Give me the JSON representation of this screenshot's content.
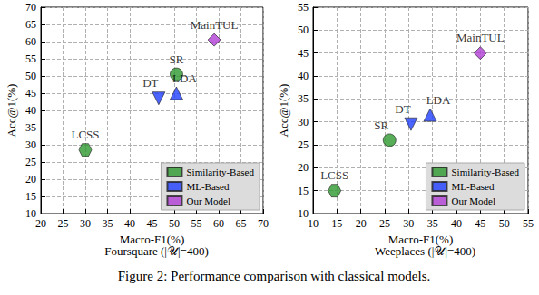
{
  "caption": "Figure 2: Performance comparison with classical models.",
  "chart_data": [
    {
      "type": "scatter",
      "title": "Foursquare (|𝒰|=400)",
      "x_label": "Macro-F1(%)",
      "y_label": "Acc@1(%)",
      "xlim": [
        20,
        70
      ],
      "xticks": [
        20,
        25,
        30,
        35,
        40,
        45,
        50,
        55,
        60,
        65,
        70
      ],
      "ylim": [
        10,
        70
      ],
      "yticks": [
        10,
        15,
        20,
        25,
        30,
        35,
        40,
        45,
        50,
        55,
        60,
        65,
        70
      ],
      "grid": true,
      "legend": "lower right",
      "series": [
        {
          "name": "Similarity-Based",
          "color": "#2e9a2e",
          "x": [
            30,
            50.5
          ],
          "values": [
            28.5,
            50.5
          ],
          "point_labels": [
            "LCSS",
            "SR"
          ],
          "markers": [
            "hexagon",
            "circle"
          ]
        },
        {
          "name": "ML-Based",
          "color": "#1f3fff",
          "x": [
            46.5,
            50.5
          ],
          "values": [
            43.5,
            45
          ],
          "point_labels": [
            "DT",
            "LDA"
          ],
          "markers": [
            "triangle_down",
            "triangle_up"
          ]
        },
        {
          "name": "Our Model",
          "color": "#b23ed6",
          "x": [
            59
          ],
          "values": [
            60.5
          ],
          "point_labels": [
            "MainTUL"
          ],
          "markers": [
            "diamond"
          ]
        }
      ]
    },
    {
      "type": "scatter",
      "title": "Weeplaces (|𝒰|=400)",
      "x_label": "Macro-F1(%)",
      "y_label": "Acc@1(%)",
      "xlim": [
        10,
        55
      ],
      "xticks": [
        10,
        15,
        20,
        25,
        30,
        35,
        40,
        45,
        50,
        55
      ],
      "ylim": [
        10,
        55
      ],
      "yticks": [
        10,
        15,
        20,
        25,
        30,
        35,
        40,
        45,
        50,
        55
      ],
      "grid": true,
      "legend": "lower right",
      "series": [
        {
          "name": "Similarity-Based",
          "color": "#2e9a2e",
          "x": [
            14.5,
            26
          ],
          "values": [
            15,
            26
          ],
          "point_labels": [
            "LCSS",
            "SR"
          ],
          "markers": [
            "hexagon",
            "circle"
          ]
        },
        {
          "name": "ML-Based",
          "color": "#1f3fff",
          "x": [
            30.5,
            34.5
          ],
          "values": [
            29.5,
            31.5
          ],
          "point_labels": [
            "DT",
            "LDA"
          ],
          "markers": [
            "triangle_down",
            "triangle_up"
          ]
        },
        {
          "name": "Our Model",
          "color": "#b23ed6",
          "x": [
            45
          ],
          "values": [
            45
          ],
          "point_labels": [
            "MainTUL"
          ],
          "markers": [
            "diamond"
          ]
        }
      ]
    }
  ]
}
